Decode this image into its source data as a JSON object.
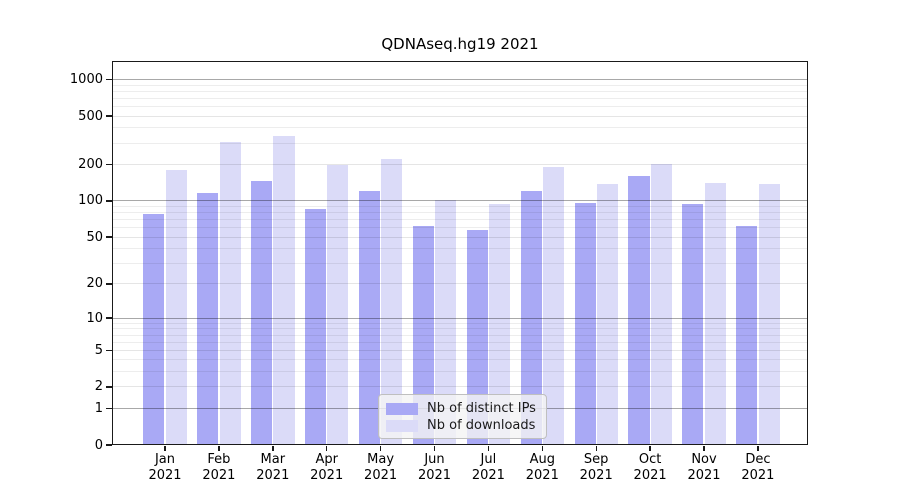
{
  "title": "QDNAseq.hg19 2021",
  "chart_data": {
    "type": "bar",
    "title": "QDNAseq.hg19 2021",
    "scale": "log1p",
    "categories": [
      "Jan",
      "Feb",
      "Mar",
      "Apr",
      "May",
      "Jun",
      "Jul",
      "Aug",
      "Sep",
      "Oct",
      "Nov",
      "Dec"
    ],
    "x_year": "2021",
    "series": [
      {
        "name": "Nb of distinct IPs",
        "color": "#a9a9f5",
        "values": [
          78,
          117,
          146,
          85,
          120,
          62,
          57,
          120,
          97,
          160,
          95,
          62
        ]
      },
      {
        "name": "Nb of downloads",
        "color": "#dbdbf8",
        "values": [
          180,
          305,
          345,
          200,
          220,
          101,
          95,
          190,
          138,
          202,
          140,
          138
        ]
      }
    ],
    "y_ticks": [
      0,
      1,
      2,
      5,
      10,
      20,
      50,
      100,
      200,
      500,
      1000
    ],
    "y_minor_gridlines": [
      3,
      4,
      6,
      7,
      8,
      9,
      30,
      40,
      60,
      70,
      80,
      90,
      300,
      400,
      600,
      700,
      800,
      900
    ],
    "y_major_dark_gridlines": [
      1,
      10,
      100,
      1000
    ],
    "ylim": [
      0,
      1420
    ],
    "grid": true,
    "legend_position": "lower center",
    "xlabel": "",
    "ylabel": ""
  }
}
